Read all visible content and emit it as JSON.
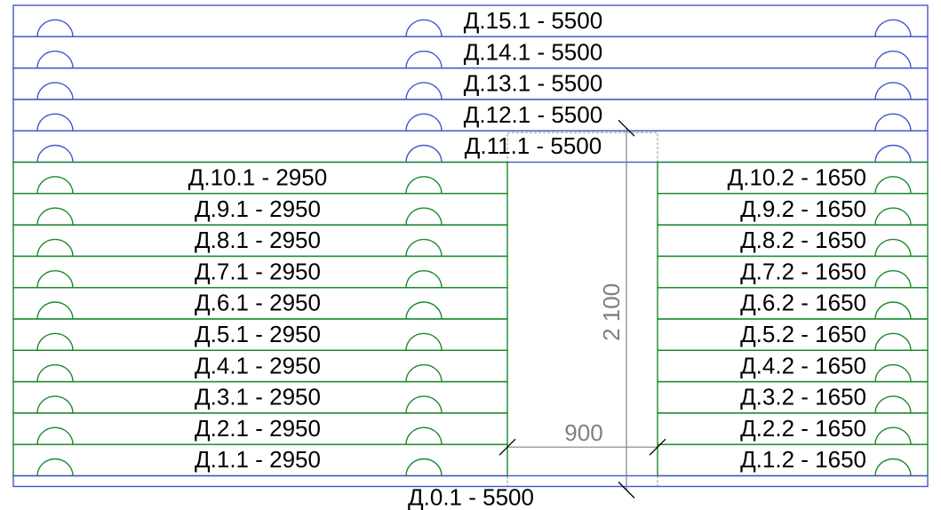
{
  "colors": {
    "full_course": "#4455cc",
    "partial_course": "#1a8a2a",
    "opening_frame": "#909090",
    "dimension": "#808080",
    "tick": "#000000",
    "text": "#000000"
  },
  "full_courses": [
    {
      "label": "Д.15.1 - 5500"
    },
    {
      "label": "Д.14.1 - 5500"
    },
    {
      "label": "Д.13.1 - 5500"
    },
    {
      "label": "Д.12.1 - 5500"
    },
    {
      "label": "Д.11.1 - 5500"
    }
  ],
  "partial_courses": [
    {
      "left": "Д.10.1 - 2950",
      "right": "Д.10.2 - 1650"
    },
    {
      "left": "Д.9.1 - 2950",
      "right": "Д.9.2 - 1650"
    },
    {
      "left": "Д.8.1 - 2950",
      "right": "Д.8.2 - 1650"
    },
    {
      "left": "Д.7.1 - 2950",
      "right": "Д.7.2 - 1650"
    },
    {
      "left": "Д.6.1 - 2950",
      "right": "Д.6.2 - 1650"
    },
    {
      "left": "Д.5.1 - 2950",
      "right": "Д.5.2 - 1650"
    },
    {
      "left": "Д.4.1 - 2950",
      "right": "Д.4.2 - 1650"
    },
    {
      "left": "Д.3.1 - 2950",
      "right": "Д.3.2 - 1650"
    },
    {
      "left": "Д.2.1 - 2950",
      "right": "Д.2.2 - 1650"
    },
    {
      "left": "Д.1.1 - 2950",
      "right": "Д.1.2 - 1650"
    }
  ],
  "bottom_course": {
    "label": "Д.0.1 - 5500"
  },
  "opening": {
    "width_label": "900",
    "height_label": "2 100"
  }
}
